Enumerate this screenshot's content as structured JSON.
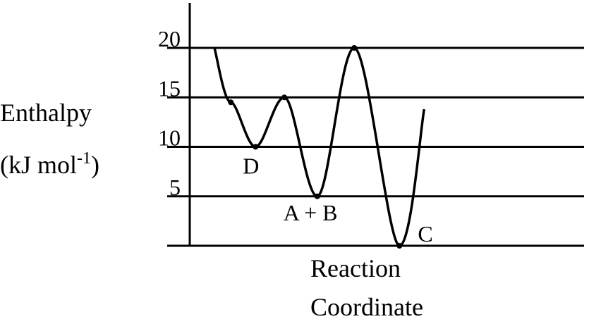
{
  "chart_data": {
    "type": "line",
    "title": "",
    "ylabel_line1": "Enthalpy",
    "ylabel_line2": "(kJ mol",
    "ylabel_sup": "-1",
    "ylabel_close": ")",
    "xlabel_line1": "Reaction",
    "xlabel_line2": "Coordinate",
    "y_ticks": [
      "5",
      "10",
      "15",
      "20"
    ],
    "y_tick_values": [
      5,
      10,
      15,
      20
    ],
    "ylim": [
      0,
      24
    ],
    "grid": "horizontal",
    "curve_points": [
      {
        "x": 0.06,
        "y": 20.0
      },
      {
        "x": 0.1,
        "y": 14.5
      },
      {
        "x": 0.16,
        "y": 10.0,
        "label": "D"
      },
      {
        "x": 0.23,
        "y": 15.0
      },
      {
        "x": 0.31,
        "y": 5.0,
        "label": "A + B"
      },
      {
        "x": 0.4,
        "y": 20.0
      },
      {
        "x": 0.51,
        "y": 0.0,
        "label": "C"
      },
      {
        "x": 0.57,
        "y": 13.8
      }
    ],
    "line_color": "#000000"
  }
}
